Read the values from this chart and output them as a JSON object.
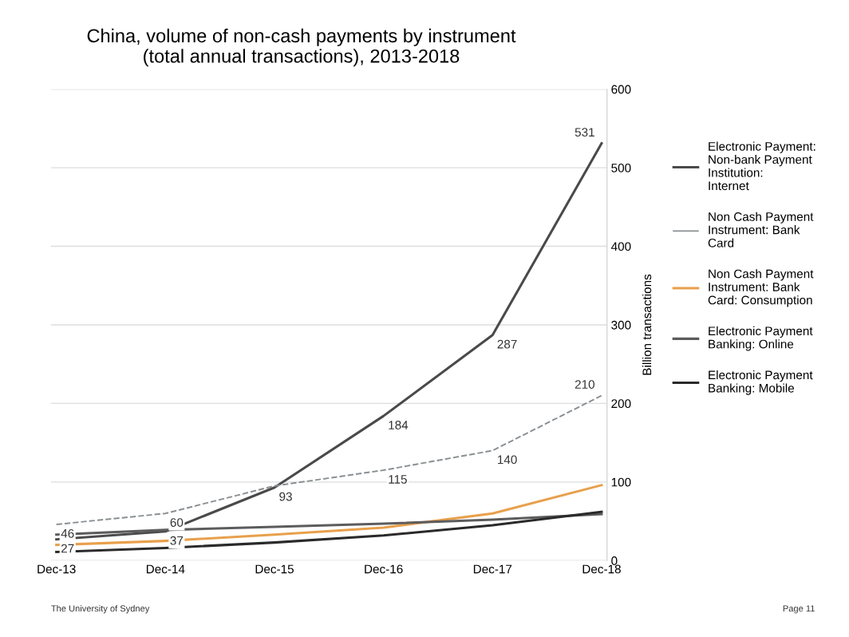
{
  "chart_data": {
    "type": "line",
    "title": "China, volume of non-cash payments by instrument\n(total annual transactions), 2013-2018",
    "categories": [
      "Dec-13",
      "Dec-14",
      "Dec-15",
      "Dec-16",
      "Dec-17",
      "Dec-18"
    ],
    "ylabel": "Billion transactions",
    "ylim": [
      0,
      600
    ],
    "yticks": [
      0,
      100,
      200,
      300,
      400,
      500,
      600
    ],
    "grid": "y",
    "legend": "right",
    "series": [
      {
        "name": "Electronic Payment: Non-bank Payment Institution: Internet",
        "color": "#4a4a4a",
        "values": [
          27,
          37,
          93,
          184,
          287,
          531
        ],
        "value_labels": [
          "27",
          "37",
          "93",
          "184",
          "287",
          "531"
        ],
        "line_style": "solid"
      },
      {
        "name": "Non Cash Payment Instrument: Bank Card",
        "color": "#8a8f92",
        "values": [
          46,
          60,
          95,
          115,
          140,
          210
        ],
        "value_labels": [
          "46",
          "60",
          null,
          "115",
          "140",
          "210"
        ],
        "line_style": "dashed"
      },
      {
        "name": "Non Cash Payment Instrument: Bank Card: Consumption",
        "color": "#e8a04c",
        "values": [
          20,
          25,
          33,
          42,
          60,
          96
        ],
        "line_style": "solid"
      },
      {
        "name": "Electronic Payment Banking: Online",
        "color": "#5c5c5c",
        "values": [
          33,
          39,
          43,
          47,
          52,
          59
        ],
        "line_style": "solid"
      },
      {
        "name": "Electronic Payment Banking: Mobile",
        "color": "#2a2a2a",
        "values": [
          11,
          16,
          23,
          32,
          45,
          62
        ],
        "line_style": "solid"
      }
    ],
    "annotations": [
      "The University of Sydney",
      "Page 11"
    ]
  }
}
